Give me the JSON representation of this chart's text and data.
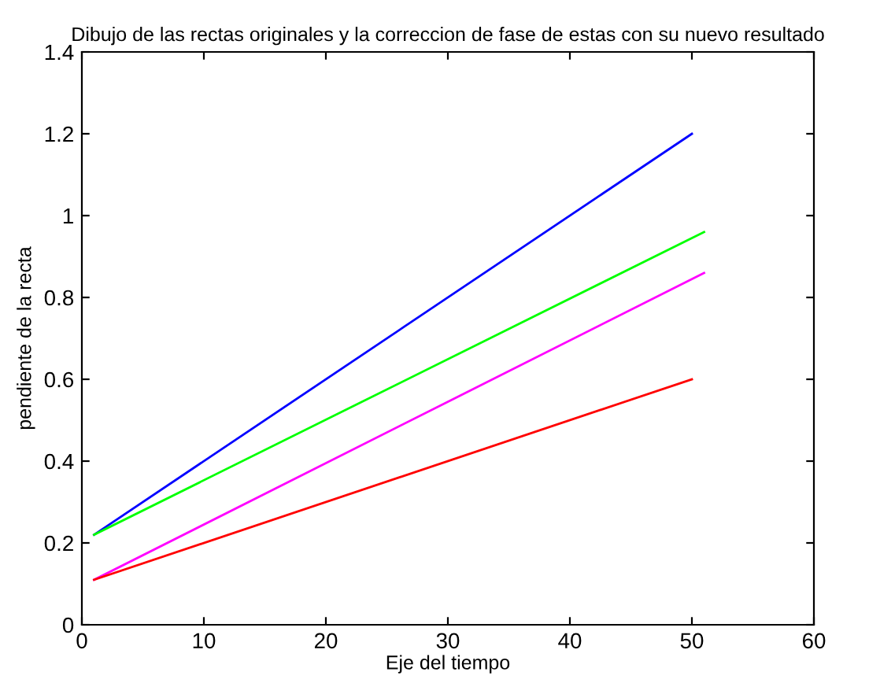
{
  "chart_data": {
    "type": "line",
    "title": "Dibujo de las rectas originales y la correccion de fase de estas con su nuevo resultado",
    "xlabel": "Eje del tiempo",
    "ylabel": "pendiente de la recta",
    "xlim": [
      0,
      60
    ],
    "ylim": [
      0,
      1.4
    ],
    "xticks": [
      0,
      10,
      20,
      30,
      40,
      50,
      60
    ],
    "yticks": [
      0,
      0.2,
      0.4,
      0.6,
      0.8,
      1,
      1.2,
      1.4
    ],
    "grid": false,
    "series": [
      {
        "color": "#0000ff",
        "x": [
          1,
          50
        ],
        "values": [
          0.22,
          1.2
        ]
      },
      {
        "color": "#00ff00",
        "x": [
          1,
          51
        ],
        "values": [
          0.22,
          0.96
        ]
      },
      {
        "color": "#ff00ff",
        "x": [
          1,
          51
        ],
        "values": [
          0.11,
          0.86
        ]
      },
      {
        "color": "#ff0000",
        "x": [
          1,
          50
        ],
        "values": [
          0.11,
          0.6
        ]
      }
    ]
  }
}
